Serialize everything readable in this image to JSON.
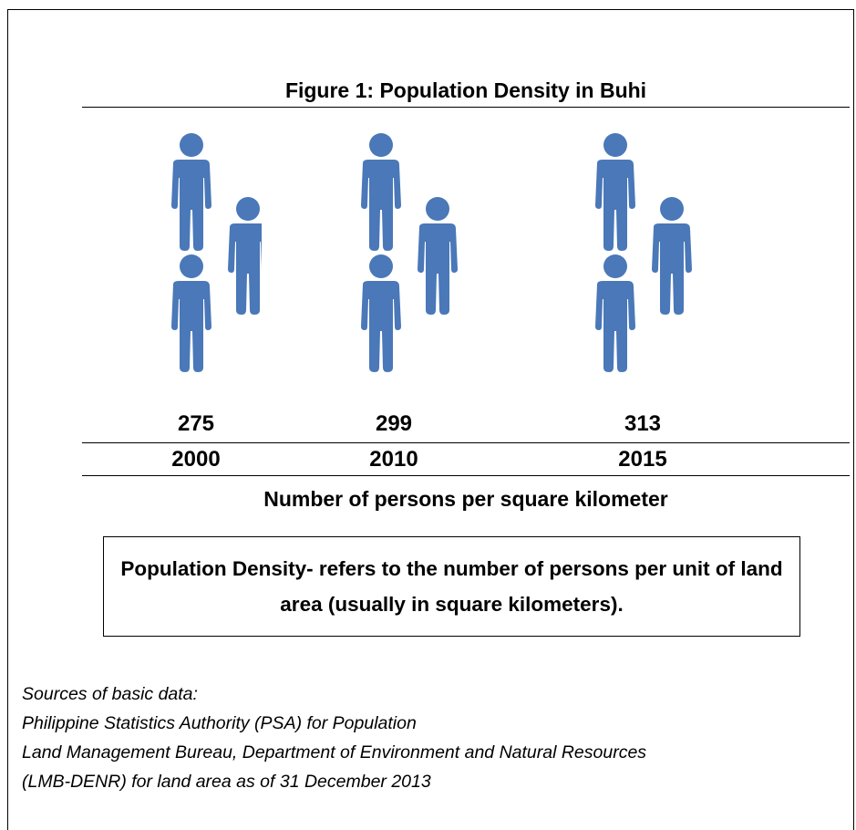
{
  "chart_data": {
    "type": "pictograph",
    "title": "Figure 1: Population Density in Buhi",
    "categories": [
      "2000",
      "2010",
      "2015"
    ],
    "values": [
      275,
      299,
      313
    ],
    "color": "#4a78b8",
    "x_label": "Number of persons per square kilometer"
  },
  "definition": "Population Density- refers to the number of persons per unit of land area (usually in square kilometers).",
  "sources": {
    "heading": "Sources of basic data:",
    "lines": [
      "Philippine Statistics Authority (PSA) for Population",
      "Land Management Bureau, Department of Environment and Natural Resources",
      "(LMB-DENR) for land area as of 31 December 2013"
    ]
  }
}
